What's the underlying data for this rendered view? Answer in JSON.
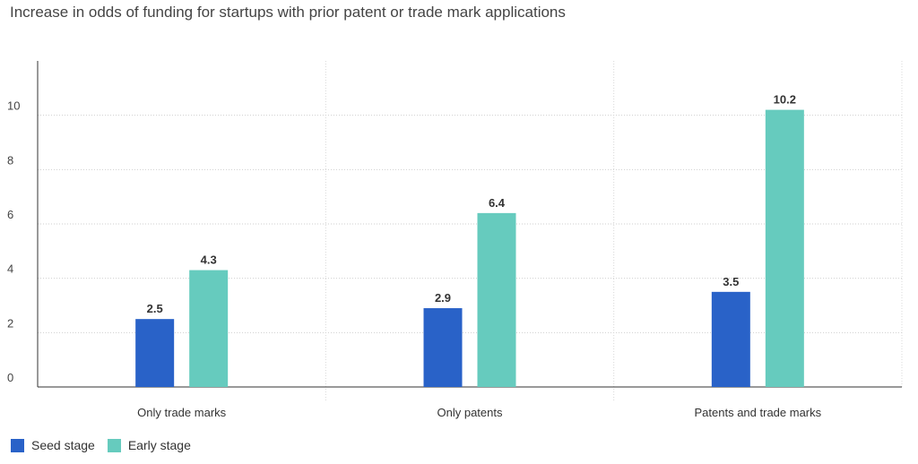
{
  "chart_data": {
    "type": "bar",
    "title": "Increase in odds of funding for startups with prior patent or trade mark applications",
    "xlabel": "",
    "ylabel": "",
    "categories": [
      "Only trade marks",
      "Only patents",
      "Patents and trade marks"
    ],
    "series": [
      {
        "name": "Seed stage",
        "color": "#2962c8",
        "values": [
          2.5,
          2.9,
          3.5
        ]
      },
      {
        "name": "Early stage",
        "color": "#66cbbe",
        "values": [
          4.3,
          6.4,
          10.2
        ]
      }
    ],
    "ylim": [
      0,
      12
    ],
    "yticks": [
      "0",
      "2",
      "4",
      "6",
      "8",
      "10"
    ],
    "data_labels": [
      [
        "2.5",
        "2.9",
        "3.5"
      ],
      [
        "4.3",
        "6.4",
        "10.2"
      ]
    ],
    "grid": true,
    "legend_position": "bottom-left"
  }
}
